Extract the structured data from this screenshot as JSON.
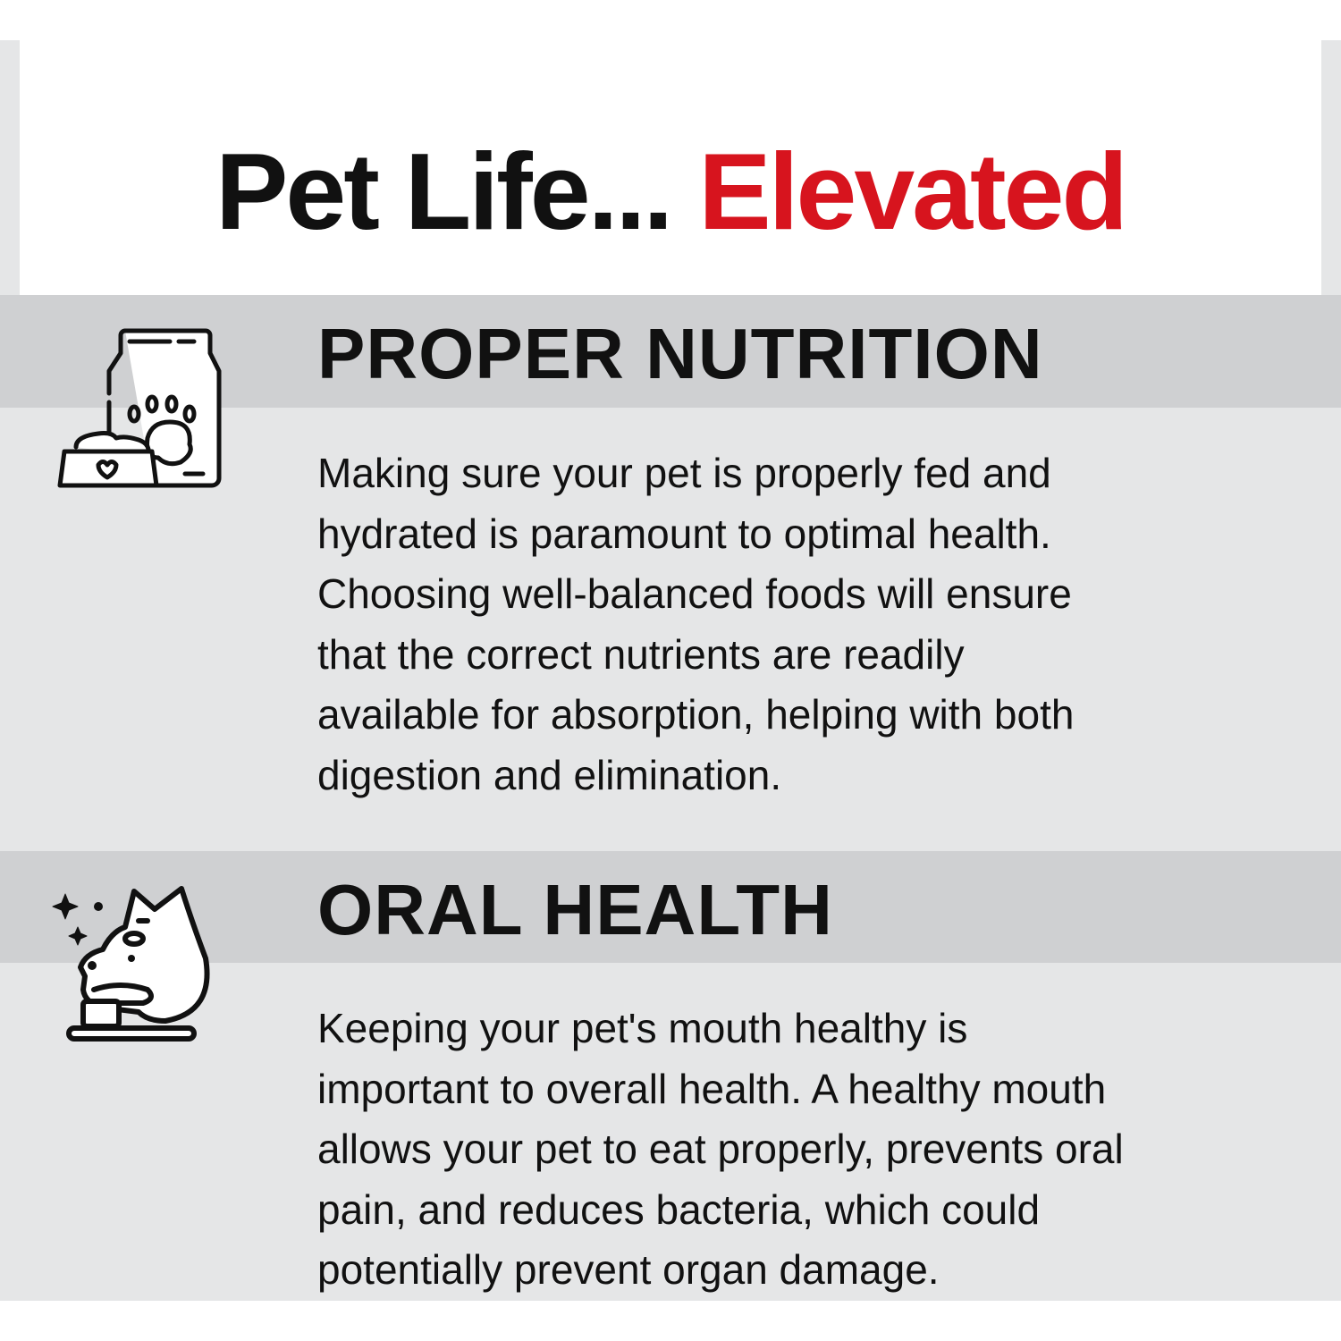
{
  "header": {
    "title_black": "Pet Life...",
    "title_red": "Elevated",
    "accent_color": "#d7141e"
  },
  "sections": [
    {
      "heading": "PROPER NUTRITION",
      "icon": "pet-food-bag-bowl-icon",
      "lines": [
        "Making sure your pet is properly fed and",
        "hydrated is paramount to optimal health.",
        "Choosing well-balanced foods will ensure",
        "that the correct nutrients are readily",
        "available for absorption, helping with both",
        "digestion and elimination."
      ]
    },
    {
      "heading": "ORAL HEALTH",
      "icon": "dog-toothbrush-icon",
      "lines": [
        "Keeping your pet's mouth healthy is",
        "important to overall health. A healthy mouth",
        "allows your pet to eat properly, prevents oral",
        "pain, and reduces bacteria, which could",
        "potentially prevent organ damage."
      ]
    }
  ]
}
